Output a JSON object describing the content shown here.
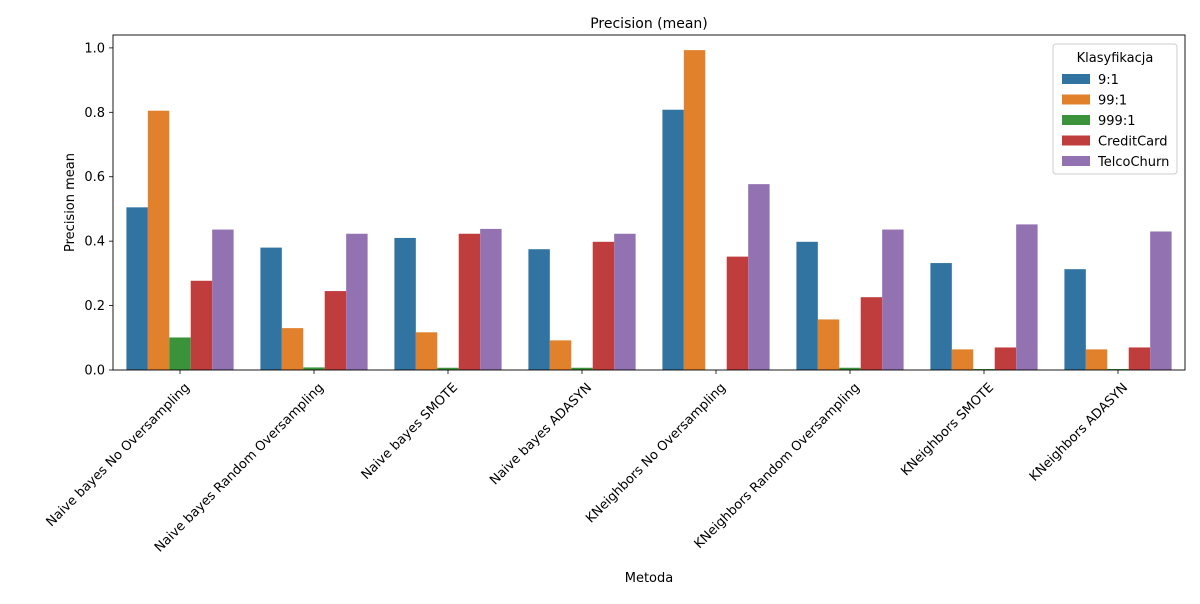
{
  "chart_data": {
    "type": "bar",
    "title": "Precision (mean)",
    "xlabel": "Metoda",
    "ylabel": "Precision mean",
    "ylim": [
      0,
      1.04
    ],
    "yticks": [
      "0.0",
      "0.2",
      "0.4",
      "0.6",
      "0.8",
      "1.0"
    ],
    "grid": false,
    "legend_position": "top-right",
    "legend_title": "Klasyfikacja",
    "categories": [
      "Naive bayes No Oversampling",
      "Naive bayes Random Oversampling",
      "Naive bayes SMOTE",
      "Naive bayes ADASYN",
      "KNeighbors No Oversampling",
      "KNeighbors Random Oversampling",
      "KNeighbors SMOTE",
      "KNeighbors ADASYN"
    ],
    "series": [
      {
        "name": "9:1",
        "color": "#3274a1",
        "values": [
          0.505,
          0.38,
          0.41,
          0.375,
          0.808,
          0.398,
          0.332,
          0.313
        ]
      },
      {
        "name": "99:1",
        "color": "#e1812c",
        "values": [
          0.805,
          0.13,
          0.117,
          0.092,
          0.993,
          0.157,
          0.064,
          0.064
        ]
      },
      {
        "name": "999:1",
        "color": "#3a923a",
        "values": [
          0.101,
          0.008,
          0.007,
          0.007,
          0.0,
          0.007,
          0.003,
          0.003
        ]
      },
      {
        "name": "CreditCard",
        "color": "#c03d3e",
        "values": [
          0.277,
          0.245,
          0.423,
          0.398,
          0.352,
          0.226,
          0.07,
          0.07
        ]
      },
      {
        "name": "TelcoChurn",
        "color": "#9372b2",
        "values": [
          0.436,
          0.423,
          0.438,
          0.423,
          0.577,
          0.436,
          0.452,
          0.43
        ]
      }
    ]
  }
}
